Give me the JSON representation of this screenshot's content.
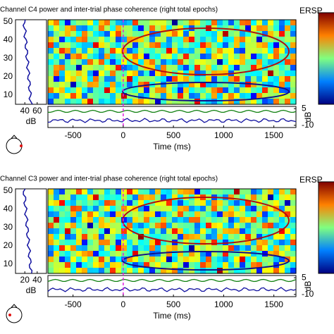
{
  "chart_data": [
    {
      "type": "heatmap",
      "title": "Channel C4 power and inter-trial phase coherence (right total epochs)",
      "colorbar_label": "ERSP",
      "xlabel": "Time (ms)",
      "xlim": [
        -750,
        1720
      ],
      "xticks": [
        -500,
        0,
        500,
        1000,
        1500
      ],
      "ylim": [
        5,
        51
      ],
      "yticks": [
        10,
        20,
        30,
        40,
        50
      ],
      "itc_ylim": [
        -12,
        7
      ],
      "itc_yticks": [
        5,
        -10
      ],
      "itc_label": "dB",
      "power_xlim": [
        25,
        75
      ],
      "power_xticks": [
        40,
        60
      ],
      "power_label": "dB"
    },
    {
      "type": "heatmap",
      "title": "Channel C3 power and inter-trial phase coherence (right total epochs)",
      "colorbar_label": "ERSP",
      "xlabel": "Time (ms)",
      "xlim": [
        -750,
        1720
      ],
      "xticks": [
        -500,
        0,
        500,
        1000,
        1500
      ],
      "ylim": [
        5,
        51
      ],
      "yticks": [
        10,
        20,
        30,
        40,
        50
      ],
      "itc_ylim": [
        -12,
        7
      ],
      "itc_yticks": [
        5,
        -10
      ],
      "itc_label": "dB",
      "power_xlim": [
        5,
        55
      ],
      "power_xticks": [
        20,
        40
      ],
      "power_label": "dB"
    }
  ]
}
